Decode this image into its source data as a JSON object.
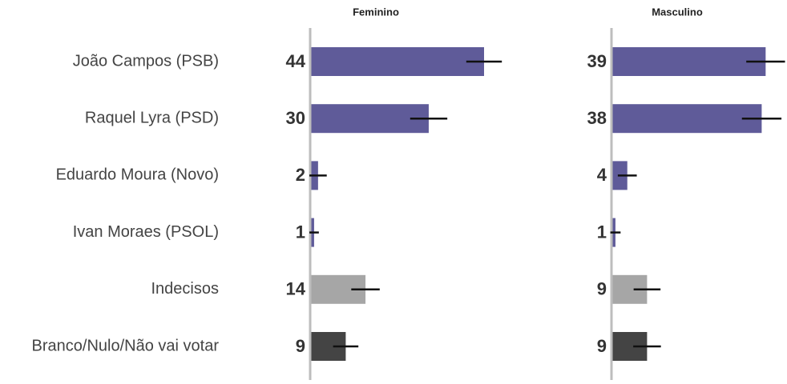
{
  "chart_data": {
    "type": "bar",
    "categories": [
      "João Campos (PSB)",
      "Raquel Lyra (PSD)",
      "Eduardo Moura (Novo)",
      "Ivan Moraes (PSOL)",
      "Indecisos",
      "Branco/Nulo/Não vai votar"
    ],
    "colors": [
      "#5f5b99",
      "#5f5b99",
      "#5f5b99",
      "#5f5b99",
      "#a6a6a6",
      "#444444"
    ],
    "series": [
      {
        "name": "Feminino",
        "values": [
          44,
          30,
          2,
          1,
          14,
          9
        ],
        "errors": [
          4.5,
          4.7,
          2.2,
          1.2,
          3.6,
          3.2
        ]
      },
      {
        "name": "Masculino",
        "values": [
          39,
          38,
          4,
          1,
          9,
          9
        ],
        "errors": [
          4.9,
          5.0,
          2.4,
          1.3,
          3.4,
          3.5
        ]
      }
    ],
    "xlim": [
      0,
      44
    ]
  }
}
